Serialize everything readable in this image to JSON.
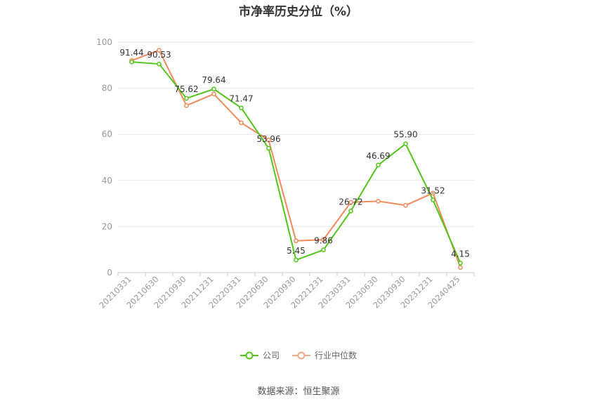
{
  "chart_data": {
    "type": "line",
    "title": "市净率历史分位（%）",
    "categories": [
      "20210331",
      "20210630",
      "20210930",
      "20211231",
      "20220331",
      "20220630",
      "20220930",
      "20221231",
      "20230331",
      "20230630",
      "20230930",
      "20231231",
      "20240425"
    ],
    "ylim": [
      0,
      100
    ],
    "yticks": [
      0,
      20,
      40,
      60,
      80,
      100
    ],
    "grid": true,
    "legend_position": "bottom",
    "series": [
      {
        "name": "公司",
        "color": "#52c41a",
        "values": [
          91.44,
          90.53,
          75.62,
          79.64,
          71.47,
          53.96,
          5.45,
          9.86,
          26.72,
          46.69,
          55.9,
          31.52,
          4.15
        ],
        "labels": [
          "91.44",
          "90.53",
          "75.62",
          "79.64",
          "71.47",
          "53.96",
          "5.45",
          "9.86",
          "26.72",
          "46.69",
          "55.90",
          "31.52",
          "4.15"
        ]
      },
      {
        "name": "行业中位数",
        "color": "#f08a5d",
        "values": [
          92.0,
          96.5,
          72.5,
          77.5,
          65.0,
          57.5,
          13.8,
          14.3,
          30.5,
          31.0,
          29.2,
          34.5,
          2.2
        ]
      }
    ]
  },
  "source": "数据来源：恒生聚源"
}
